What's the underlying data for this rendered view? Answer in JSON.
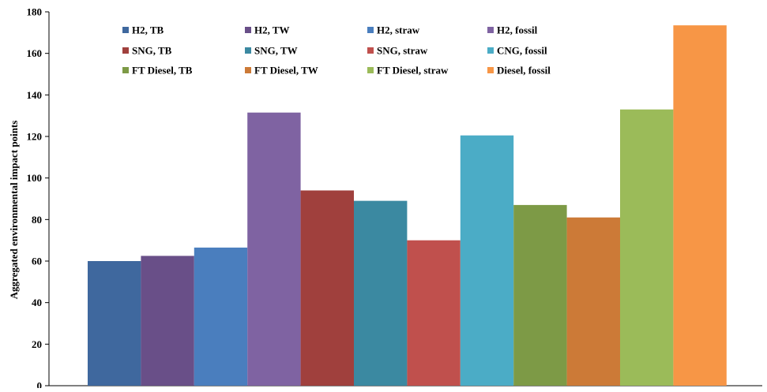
{
  "chart_data": {
    "type": "bar",
    "title": "",
    "xlabel": "",
    "ylabel": "Aggregated environmental impact points",
    "ylim": [
      0,
      180
    ],
    "yticks": [
      0,
      20,
      40,
      60,
      80,
      100,
      120,
      140,
      160,
      180
    ],
    "grid": false,
    "legend_position": "top",
    "series": [
      {
        "name": "H2, TB",
        "value": 60,
        "color": "#3F689E"
      },
      {
        "name": "H2, TW",
        "value": 62.5,
        "color": "#694F88"
      },
      {
        "name": "H2, straw",
        "value": 66.5,
        "color": "#4A7EBE"
      },
      {
        "name": "H2, fossil",
        "value": 131.5,
        "color": "#7F63A2"
      },
      {
        "name": "SNG, TB",
        "value": 94,
        "color": "#A0403D"
      },
      {
        "name": "SNG, TW",
        "value": 89,
        "color": "#3B89A1"
      },
      {
        "name": "SNG, straw",
        "value": 70,
        "color": "#C0504D"
      },
      {
        "name": "CNG, fossil",
        "value": 120.5,
        "color": "#4BACC6"
      },
      {
        "name": "FT Diesel, TB",
        "value": 87,
        "color": "#7D9A46"
      },
      {
        "name": "FT Diesel, TW",
        "value": 81,
        "color": "#CC7A37"
      },
      {
        "name": "FT Diesel, straw",
        "value": 133,
        "color": "#9BBB59"
      },
      {
        "name": "Diesel, fossil",
        "value": 173.5,
        "color": "#F79646"
      }
    ]
  }
}
